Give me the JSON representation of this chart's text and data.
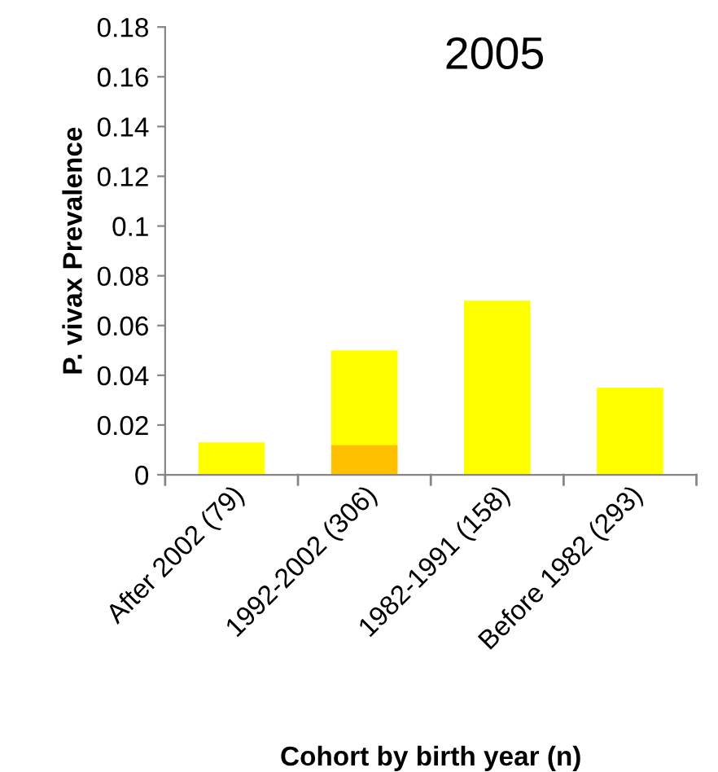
{
  "chart_data": {
    "type": "bar",
    "title": "2005",
    "xlabel": "Cohort by birth year (n)",
    "ylabel": "P. vivax Prevalence",
    "categories": [
      "After 2002 (79)",
      "1992-2002 (306)",
      "1982-1991 (158)",
      "Before 1982 (293)"
    ],
    "stacked": true,
    "series": [
      {
        "color": "#ffc000",
        "values": [
          0,
          0.012,
          0,
          0
        ]
      },
      {
        "color": "#ffff00",
        "values": [
          0.013,
          0.038,
          0.07,
          0.035
        ]
      }
    ],
    "ylim": [
      0,
      0.18
    ],
    "yticks": [
      0,
      0.02,
      0.04,
      0.06,
      0.08,
      0.1,
      0.12,
      0.14,
      0.16,
      0.18
    ],
    "grid": false,
    "legend": false
  }
}
